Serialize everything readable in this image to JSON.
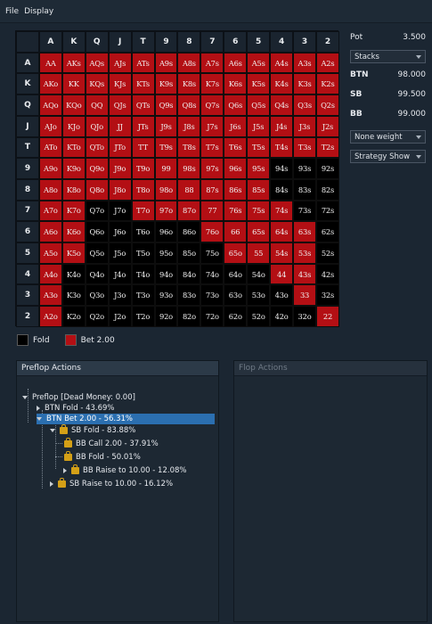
{
  "menu": {
    "items": [
      "File",
      "Display"
    ]
  },
  "grid": {
    "headers": [
      "A",
      "K",
      "Q",
      "J",
      "T",
      "9",
      "8",
      "7",
      "6",
      "5",
      "4",
      "3",
      "2"
    ],
    "rows": [
      {
        "label": "A",
        "cells": [
          {
            "t": "AA",
            "a": "bet"
          },
          {
            "t": "AKs",
            "a": "bet"
          },
          {
            "t": "AQs",
            "a": "bet"
          },
          {
            "t": "AJs",
            "a": "bet"
          },
          {
            "t": "ATs",
            "a": "bet"
          },
          {
            "t": "A9s",
            "a": "bet"
          },
          {
            "t": "A8s",
            "a": "bet"
          },
          {
            "t": "A7s",
            "a": "bet"
          },
          {
            "t": "A6s",
            "a": "bet"
          },
          {
            "t": "A5s",
            "a": "bet"
          },
          {
            "t": "A4s",
            "a": "bet"
          },
          {
            "t": "A3s",
            "a": "bet"
          },
          {
            "t": "A2s",
            "a": "bet"
          }
        ]
      },
      {
        "label": "K",
        "cells": [
          {
            "t": "AKo",
            "a": "bet"
          },
          {
            "t": "KK",
            "a": "bet"
          },
          {
            "t": "KQs",
            "a": "bet"
          },
          {
            "t": "KJs",
            "a": "bet"
          },
          {
            "t": "KTs",
            "a": "bet"
          },
          {
            "t": "K9s",
            "a": "bet"
          },
          {
            "t": "K8s",
            "a": "bet"
          },
          {
            "t": "K7s",
            "a": "bet"
          },
          {
            "t": "K6s",
            "a": "bet"
          },
          {
            "t": "K5s",
            "a": "bet"
          },
          {
            "t": "K4s",
            "a": "bet"
          },
          {
            "t": "K3s",
            "a": "bet"
          },
          {
            "t": "K2s",
            "a": "bet"
          }
        ]
      },
      {
        "label": "Q",
        "cells": [
          {
            "t": "AQo",
            "a": "bet"
          },
          {
            "t": "KQo",
            "a": "bet"
          },
          {
            "t": "QQ",
            "a": "bet"
          },
          {
            "t": "QJs",
            "a": "bet"
          },
          {
            "t": "QTs",
            "a": "bet"
          },
          {
            "t": "Q9s",
            "a": "bet"
          },
          {
            "t": "Q8s",
            "a": "bet"
          },
          {
            "t": "Q7s",
            "a": "bet"
          },
          {
            "t": "Q6s",
            "a": "bet"
          },
          {
            "t": "Q5s",
            "a": "bet"
          },
          {
            "t": "Q4s",
            "a": "bet"
          },
          {
            "t": "Q3s",
            "a": "bet"
          },
          {
            "t": "Q2s",
            "a": "bet"
          }
        ]
      },
      {
        "label": "J",
        "cells": [
          {
            "t": "AJo",
            "a": "bet"
          },
          {
            "t": "KJo",
            "a": "bet"
          },
          {
            "t": "QJo",
            "a": "bet"
          },
          {
            "t": "JJ",
            "a": "bet"
          },
          {
            "t": "JTs",
            "a": "bet"
          },
          {
            "t": "J9s",
            "a": "bet"
          },
          {
            "t": "J8s",
            "a": "bet"
          },
          {
            "t": "J7s",
            "a": "bet"
          },
          {
            "t": "J6s",
            "a": "bet"
          },
          {
            "t": "J5s",
            "a": "bet"
          },
          {
            "t": "J4s",
            "a": "bet"
          },
          {
            "t": "J3s",
            "a": "bet"
          },
          {
            "t": "J2s",
            "a": "bet"
          }
        ]
      },
      {
        "label": "T",
        "cells": [
          {
            "t": "ATo",
            "a": "bet"
          },
          {
            "t": "KTo",
            "a": "bet"
          },
          {
            "t": "QTo",
            "a": "bet"
          },
          {
            "t": "JTo",
            "a": "bet"
          },
          {
            "t": "TT",
            "a": "bet"
          },
          {
            "t": "T9s",
            "a": "bet"
          },
          {
            "t": "T8s",
            "a": "bet"
          },
          {
            "t": "T7s",
            "a": "bet"
          },
          {
            "t": "T6s",
            "a": "bet"
          },
          {
            "t": "T5s",
            "a": "bet"
          },
          {
            "t": "T4s",
            "a": "bet"
          },
          {
            "t": "T3s",
            "a": "bet"
          },
          {
            "t": "T2s",
            "a": "bet"
          }
        ]
      },
      {
        "label": "9",
        "cells": [
          {
            "t": "A9o",
            "a": "bet"
          },
          {
            "t": "K9o",
            "a": "bet"
          },
          {
            "t": "Q9o",
            "a": "bet"
          },
          {
            "t": "J9o",
            "a": "bet"
          },
          {
            "t": "T9o",
            "a": "bet"
          },
          {
            "t": "99",
            "a": "bet"
          },
          {
            "t": "98s",
            "a": "bet"
          },
          {
            "t": "97s",
            "a": "bet"
          },
          {
            "t": "96s",
            "a": "bet"
          },
          {
            "t": "95s",
            "a": "bet"
          },
          {
            "t": "94s",
            "a": "fold"
          },
          {
            "t": "93s",
            "a": "fold"
          },
          {
            "t": "92s",
            "a": "fold"
          }
        ]
      },
      {
        "label": "8",
        "cells": [
          {
            "t": "A8o",
            "a": "bet"
          },
          {
            "t": "K8o",
            "a": "bet"
          },
          {
            "t": "Q8o",
            "a": "bet"
          },
          {
            "t": "J8o",
            "a": "bet"
          },
          {
            "t": "T8o",
            "a": "bet"
          },
          {
            "t": "98o",
            "a": "bet"
          },
          {
            "t": "88",
            "a": "bet"
          },
          {
            "t": "87s",
            "a": "bet"
          },
          {
            "t": "86s",
            "a": "bet"
          },
          {
            "t": "85s",
            "a": "bet"
          },
          {
            "t": "84s",
            "a": "fold"
          },
          {
            "t": "83s",
            "a": "fold"
          },
          {
            "t": "82s",
            "a": "fold"
          }
        ]
      },
      {
        "label": "7",
        "cells": [
          {
            "t": "A7o",
            "a": "bet"
          },
          {
            "t": "K7o",
            "a": "bet"
          },
          {
            "t": "Q7o",
            "a": "fold"
          },
          {
            "t": "J7o",
            "a": "fold"
          },
          {
            "t": "T7o",
            "a": "bet"
          },
          {
            "t": "97o",
            "a": "bet"
          },
          {
            "t": "87o",
            "a": "bet"
          },
          {
            "t": "77",
            "a": "bet"
          },
          {
            "t": "76s",
            "a": "bet"
          },
          {
            "t": "75s",
            "a": "bet"
          },
          {
            "t": "74s",
            "a": "bet"
          },
          {
            "t": "73s",
            "a": "fold"
          },
          {
            "t": "72s",
            "a": "fold"
          }
        ]
      },
      {
        "label": "6",
        "cells": [
          {
            "t": "A6o",
            "a": "bet"
          },
          {
            "t": "K6o",
            "a": "bet"
          },
          {
            "t": "Q6o",
            "a": "fold"
          },
          {
            "t": "J6o",
            "a": "fold"
          },
          {
            "t": "T6o",
            "a": "fold"
          },
          {
            "t": "96o",
            "a": "fold"
          },
          {
            "t": "86o",
            "a": "fold"
          },
          {
            "t": "76o",
            "a": "bet"
          },
          {
            "t": "66",
            "a": "bet"
          },
          {
            "t": "65s",
            "a": "bet"
          },
          {
            "t": "64s",
            "a": "bet"
          },
          {
            "t": "63s",
            "a": "bet"
          },
          {
            "t": "62s",
            "a": "fold"
          }
        ]
      },
      {
        "label": "5",
        "cells": [
          {
            "t": "A5o",
            "a": "bet"
          },
          {
            "t": "K5o",
            "a": "bet"
          },
          {
            "t": "Q5o",
            "a": "fold"
          },
          {
            "t": "J5o",
            "a": "fold"
          },
          {
            "t": "T5o",
            "a": "fold"
          },
          {
            "t": "95o",
            "a": "fold"
          },
          {
            "t": "85o",
            "a": "fold"
          },
          {
            "t": "75o",
            "a": "fold"
          },
          {
            "t": "65o",
            "a": "bet"
          },
          {
            "t": "55",
            "a": "bet"
          },
          {
            "t": "54s",
            "a": "bet"
          },
          {
            "t": "53s",
            "a": "bet"
          },
          {
            "t": "52s",
            "a": "fold"
          }
        ]
      },
      {
        "label": "4",
        "cells": [
          {
            "t": "A4o",
            "a": "bet"
          },
          {
            "t": "K4o",
            "a": "fold"
          },
          {
            "t": "Q4o",
            "a": "fold"
          },
          {
            "t": "J4o",
            "a": "fold"
          },
          {
            "t": "T4o",
            "a": "fold"
          },
          {
            "t": "94o",
            "a": "fold"
          },
          {
            "t": "84o",
            "a": "fold"
          },
          {
            "t": "74o",
            "a": "fold"
          },
          {
            "t": "64o",
            "a": "fold"
          },
          {
            "t": "54o",
            "a": "fold"
          },
          {
            "t": "44",
            "a": "bet"
          },
          {
            "t": "43s",
            "a": "bet"
          },
          {
            "t": "42s",
            "a": "fold"
          }
        ]
      },
      {
        "label": "3",
        "cells": [
          {
            "t": "A3o",
            "a": "bet"
          },
          {
            "t": "K3o",
            "a": "fold"
          },
          {
            "t": "Q3o",
            "a": "fold"
          },
          {
            "t": "J3o",
            "a": "fold"
          },
          {
            "t": "T3o",
            "a": "fold"
          },
          {
            "t": "93o",
            "a": "fold"
          },
          {
            "t": "83o",
            "a": "fold"
          },
          {
            "t": "73o",
            "a": "fold"
          },
          {
            "t": "63o",
            "a": "fold"
          },
          {
            "t": "53o",
            "a": "fold"
          },
          {
            "t": "43o",
            "a": "fold"
          },
          {
            "t": "33",
            "a": "bet"
          },
          {
            "t": "32s",
            "a": "fold"
          }
        ]
      },
      {
        "label": "2",
        "cells": [
          {
            "t": "A2o",
            "a": "bet"
          },
          {
            "t": "K2o",
            "a": "fold"
          },
          {
            "t": "Q2o",
            "a": "fold"
          },
          {
            "t": "J2o",
            "a": "fold"
          },
          {
            "t": "T2o",
            "a": "fold"
          },
          {
            "t": "92o",
            "a": "fold"
          },
          {
            "t": "82o",
            "a": "fold"
          },
          {
            "t": "72o",
            "a": "fold"
          },
          {
            "t": "62o",
            "a": "fold"
          },
          {
            "t": "52o",
            "a": "fold"
          },
          {
            "t": "42o",
            "a": "fold"
          },
          {
            "t": "32o",
            "a": "fold"
          },
          {
            "t": "22",
            "a": "bet"
          }
        ]
      }
    ]
  },
  "colors": {
    "bet": "#b30f14",
    "fold": "#000000",
    "selected": "#2b6fb0"
  },
  "legend": {
    "fold_label": "Fold",
    "bet_label": "Bet 2.00"
  },
  "side": {
    "pot_label": "Pot",
    "pot_value": "3.500",
    "stacks_dropdown": "Stacks",
    "btn_label": "BTN",
    "btn_value": "98.000",
    "sb_label": "SB",
    "sb_value": "99.500",
    "bb_label": "BB",
    "bb_value": "99.000",
    "weight_dropdown": "None weight",
    "strategy_dropdown": "Strategy Show"
  },
  "preflop_panel": {
    "title": "Preflop Actions",
    "nodes": {
      "root": "Preflop [Dead Money: 0.00]",
      "btn_fold": "BTN Fold - 43.69%",
      "btn_bet": "BTN Bet 2.00 - 56.31%",
      "sb_fold": "SB Fold - 83.88%",
      "bb_call": "BB Call 2.00 - 37.91%",
      "bb_fold": "BB Fold - 50.01%",
      "bb_raise": "BB Raise to 10.00 - 12.08%",
      "sb_raise": "SB Raise to 10.00 - 16.12%"
    }
  },
  "flop_panel": {
    "title": "Flop Actions"
  }
}
